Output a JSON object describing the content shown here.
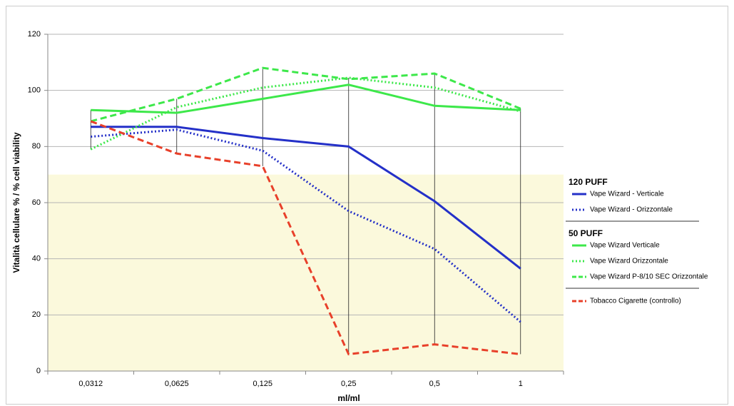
{
  "chart_data": {
    "type": "line",
    "x_label": "ml/ml",
    "y_label": "Vitalità cellulare % / % cell viability",
    "categories": [
      "0,0312",
      "0,0625",
      "0,125",
      "0,25",
      "0,5",
      "1"
    ],
    "ylim": [
      0,
      120
    ],
    "yticks": [
      0,
      20,
      40,
      60,
      80,
      100,
      120
    ],
    "grid": true,
    "shaded_range": [
      0,
      70
    ],
    "shaded_color": "#fbf9dc",
    "high_low_lines": true,
    "legend_headers": [
      "120 PUFF",
      "50 PUFF"
    ],
    "series": [
      {
        "name": "Vape Wizard - Verticale",
        "color": "#2430c8",
        "dash": "solid",
        "group": 0,
        "values": [
          87,
          87,
          83,
          80,
          60.5,
          36.5
        ]
      },
      {
        "name": "Vape Wizard - Orizzontale",
        "color": "#2430c8",
        "dash": "dotted",
        "group": 0,
        "values": [
          83.5,
          86,
          78.5,
          57,
          43.5,
          17.5
        ]
      },
      {
        "name": "Vape Wizard Verticale",
        "color": "#3de84a",
        "dash": "solid",
        "group": 1,
        "values": [
          93,
          92,
          97,
          102,
          94.5,
          93
        ]
      },
      {
        "name": "Vape Wizard Orizzontale",
        "color": "#3de84a",
        "dash": "dotted",
        "group": 1,
        "values": [
          79,
          94,
          101,
          104.5,
          101,
          92.5
        ]
      },
      {
        "name": "Vape Wizard P-8/10 SEC Orizzontale",
        "color": "#3de84a",
        "dash": "dashed",
        "group": 1,
        "values": [
          89,
          97,
          108,
          104,
          106,
          93.5
        ]
      },
      {
        "name": "Tobacco Cigarette (controllo)",
        "color": "#e8402a",
        "dash": "dashed",
        "group": 2,
        "values": [
          89,
          77.5,
          73,
          6,
          9.5,
          6
        ]
      }
    ]
  }
}
